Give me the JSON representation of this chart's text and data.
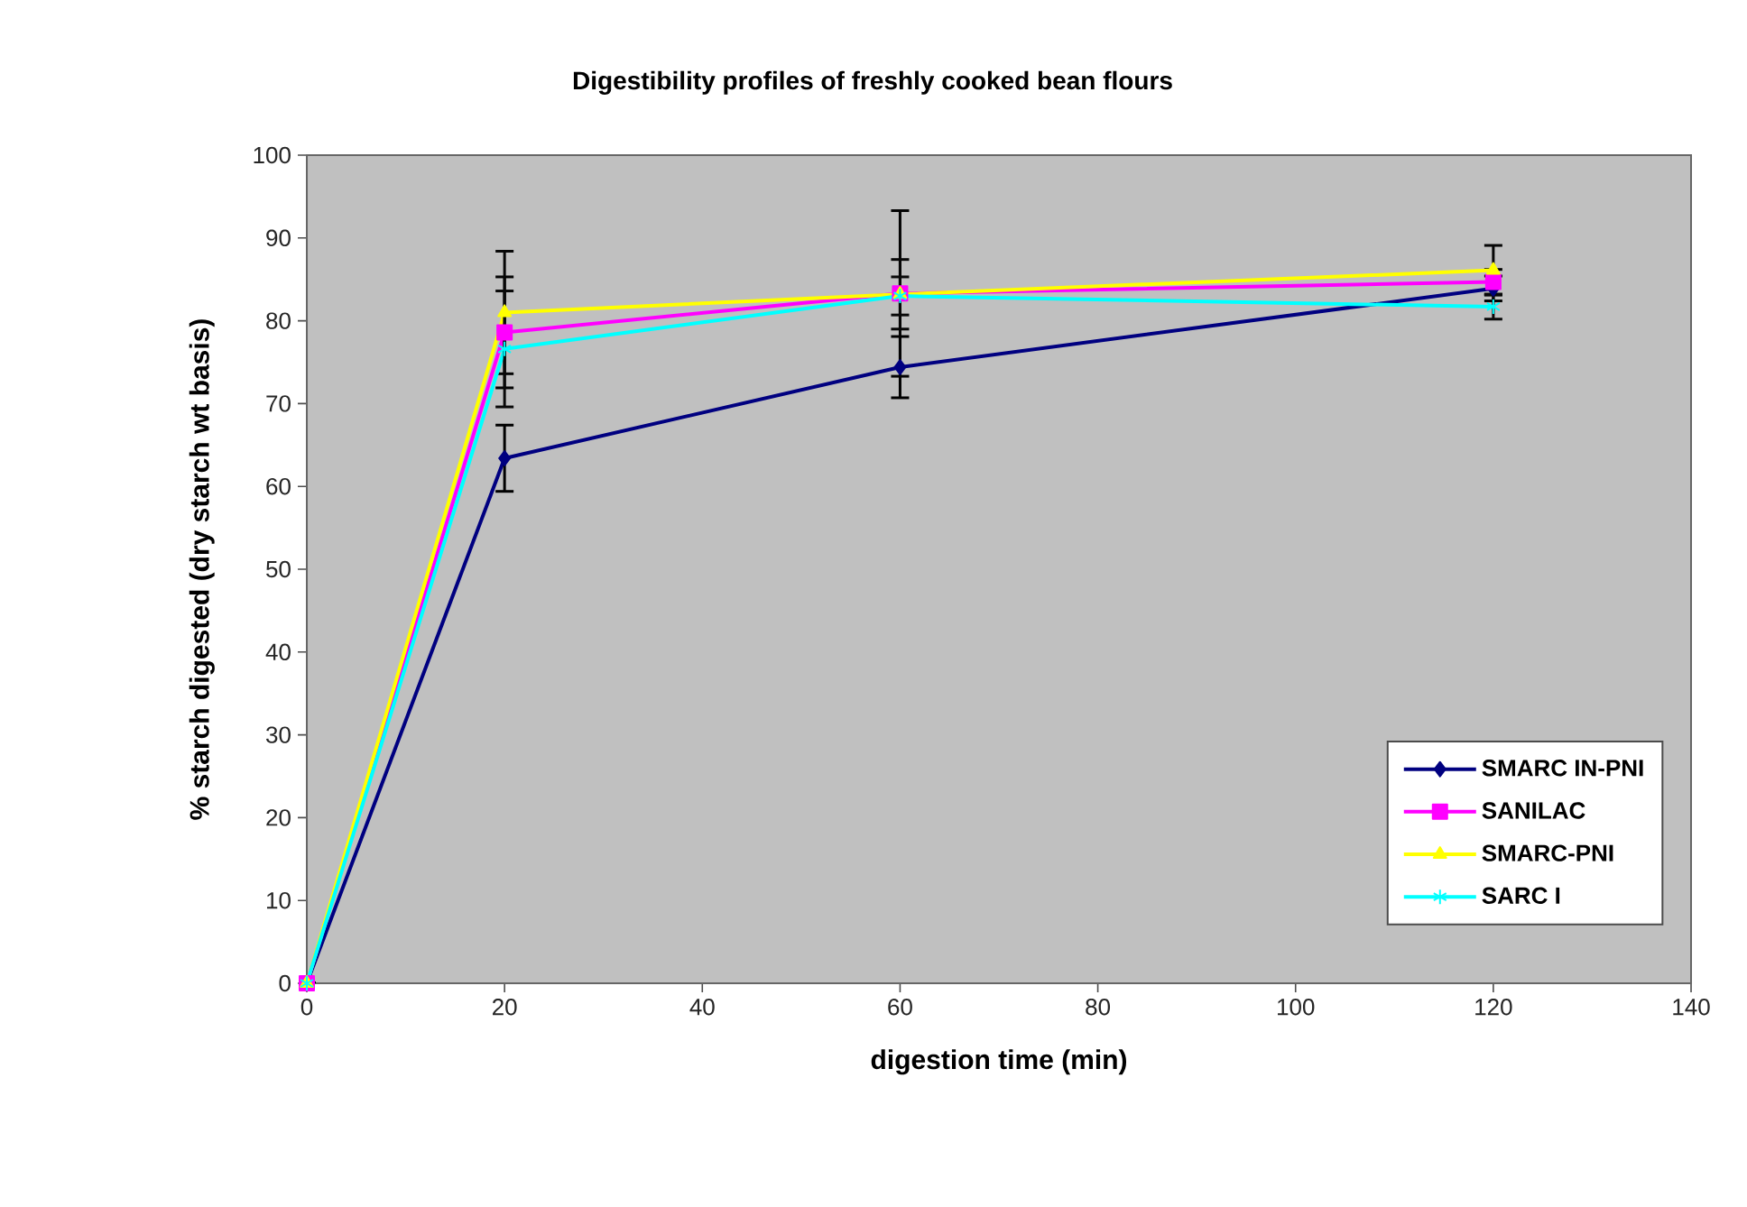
{
  "chart_data": {
    "type": "line",
    "title": "Digestibility profiles of freshly cooked bean flours",
    "xlabel": "digestion time (min)",
    "ylabel": "% starch digested (dry starch wt basis)",
    "x": [
      0,
      20,
      60,
      120
    ],
    "series": [
      {
        "name": "SMARC IN-PNI",
        "color": "#000080",
        "marker": "diamond",
        "values": [
          0,
          63.4,
          74.4,
          83.9
        ],
        "errors": [
          null,
          4,
          3.7,
          1.5
        ]
      },
      {
        "name": "SANILAC",
        "color": "#ff00ff",
        "marker": "square",
        "values": [
          0,
          78.6,
          83.3,
          84.7
        ],
        "errors": [
          null,
          6.7,
          10,
          1.5
        ]
      },
      {
        "name": "SMARC-PNI",
        "color": "#ffff00",
        "marker": "triangle",
        "values": [
          0,
          81,
          83.2,
          86.1
        ],
        "errors": [
          null,
          7.4,
          4.2,
          3
        ]
      },
      {
        "name": "SARC I",
        "color": "#00ffff",
        "marker": "cross",
        "values": [
          0,
          76.6,
          83,
          81.7
        ],
        "errors": [
          null,
          7,
          2.3,
          1.5
        ]
      }
    ],
    "xlim": [
      0,
      140
    ],
    "xticks": [
      0,
      20,
      40,
      60,
      80,
      100,
      120,
      140
    ],
    "ylim": [
      0,
      100
    ],
    "yticks": [
      0,
      10,
      20,
      30,
      40,
      50,
      60,
      70,
      80,
      90,
      100
    ],
    "legend": "bottom right"
  }
}
